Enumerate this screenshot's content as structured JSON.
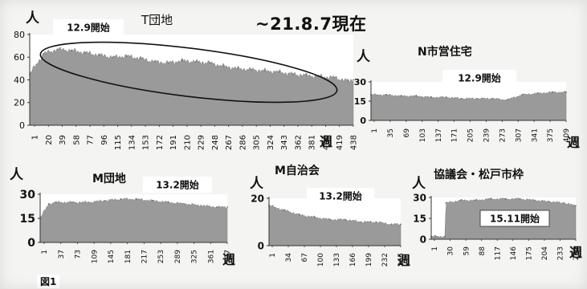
{
  "header": {
    "date_note": "~21.8.7現在",
    "figure_label": "図1"
  },
  "units": {
    "x": "週",
    "y": "人"
  },
  "chart_data": [
    {
      "type": "area",
      "title": "T団地",
      "start_label": "12.9開始",
      "ylim": [
        0,
        80
      ],
      "yticks": [
        0,
        20,
        40,
        60,
        80
      ],
      "xticks": [
        "1",
        "20",
        "39",
        "58",
        "77",
        "96",
        "115",
        "134",
        "153",
        "172",
        "191",
        "210",
        "229",
        "248",
        "267",
        "286",
        "305",
        "324",
        "343",
        "362",
        "381",
        "400",
        "419",
        "438"
      ],
      "xlabel": "週",
      "ylabel": "人",
      "annotation": "ellipse highlighting declining trend",
      "x": [
        1,
        20,
        39,
        58,
        77,
        96,
        115,
        134,
        153,
        172,
        191,
        210,
        229,
        248,
        267,
        286,
        305,
        324,
        343,
        362,
        381,
        400,
        419,
        438,
        445
      ],
      "y": [
        45,
        63,
        67,
        66,
        64,
        62,
        60,
        61,
        59,
        56,
        55,
        57,
        56,
        55,
        52,
        50,
        49,
        48,
        47,
        45,
        44,
        43,
        42,
        39,
        40
      ]
    },
    {
      "type": "area",
      "title": "N市営住宅",
      "start_label": "12.9開始",
      "ylim": [
        0,
        30
      ],
      "yticks": [
        0,
        15,
        30
      ],
      "xticks": [
        "1",
        "35",
        "69",
        "103",
        "137",
        "171",
        "205",
        "239",
        "273",
        "307",
        "341",
        "375",
        "409"
      ],
      "xlabel": "週",
      "ylabel": "人",
      "x": [
        1,
        35,
        69,
        103,
        137,
        171,
        205,
        239,
        273,
        307,
        341,
        375,
        409,
        440
      ],
      "y": [
        20,
        20,
        19,
        19,
        18,
        18,
        17,
        17,
        17,
        16,
        20,
        21,
        22,
        22
      ]
    },
    {
      "type": "area",
      "title": "M団地",
      "start_label": "13.2開始",
      "ylim": [
        0,
        30
      ],
      "yticks": [
        0,
        15,
        30
      ],
      "xticks": [
        "1",
        "37",
        "73",
        "109",
        "145",
        "181",
        "217",
        "253",
        "289",
        "325",
        "361",
        "397"
      ],
      "xlabel": "週",
      "ylabel": "人",
      "x": [
        1,
        20,
        37,
        73,
        109,
        145,
        181,
        217,
        253,
        289,
        325,
        361,
        397,
        420
      ],
      "y": [
        15,
        24,
        25,
        25,
        25,
        26,
        27,
        27,
        26,
        25,
        24,
        23,
        22,
        22
      ]
    },
    {
      "type": "area",
      "title": "M自治会",
      "start_label": "13.2開始",
      "ylim": [
        0,
        20
      ],
      "yticks": [
        0,
        20
      ],
      "xticks": [
        "1",
        "34",
        "67",
        "100",
        "133",
        "166",
        "199",
        "232",
        "265"
      ],
      "xlabel": "週",
      "ylabel": "人",
      "x": [
        1,
        34,
        67,
        100,
        133,
        166,
        199,
        232,
        265,
        285
      ],
      "y": [
        17,
        15,
        13,
        12,
        11,
        11,
        10,
        10,
        9,
        9
      ]
    },
    {
      "type": "area",
      "title": "協議会・松戸市枠",
      "start_label": "15.11開始",
      "ylim": [
        0,
        30
      ],
      "yticks": [
        0,
        15,
        30
      ],
      "xticks": [
        "1",
        "30",
        "59",
        "88",
        "117",
        "146",
        "175",
        "204",
        "233",
        "262"
      ],
      "xlabel": "週",
      "ylabel": "人",
      "x": [
        1,
        10,
        28,
        30,
        59,
        88,
        117,
        146,
        175,
        204,
        233,
        262,
        285
      ],
      "y": [
        2,
        2,
        2,
        26,
        28,
        28,
        29,
        29,
        29,
        28,
        27,
        26,
        24
      ]
    }
  ]
}
